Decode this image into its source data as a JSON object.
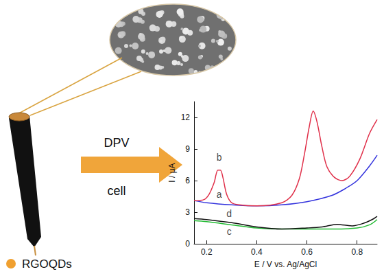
{
  "chart_data": {
    "type": "line",
    "xlabel": "E / V vs. Ag/AgCl",
    "ylabel": "I / μA",
    "xlim": [
      0.15,
      0.88
    ],
    "ylim": [
      0,
      13.5
    ],
    "xticks": [
      0.2,
      0.4,
      0.6,
      0.8
    ],
    "yticks": [
      0,
      3,
      6,
      9,
      12
    ],
    "series": [
      {
        "name": "a",
        "color": "#3333dd",
        "x": [
          0.15,
          0.2,
          0.3,
          0.4,
          0.5,
          0.6,
          0.7,
          0.75,
          0.8,
          0.85,
          0.88
        ],
        "values": [
          4.1,
          3.9,
          3.7,
          3.6,
          3.7,
          4.0,
          4.6,
          5.2,
          6.0,
          7.4,
          8.4
        ]
      },
      {
        "name": "b",
        "color": "#e0304a",
        "x": [
          0.15,
          0.19,
          0.21,
          0.23,
          0.245,
          0.255,
          0.265,
          0.28,
          0.3,
          0.33,
          0.4,
          0.5,
          0.54,
          0.57,
          0.59,
          0.61,
          0.625,
          0.64,
          0.66,
          0.68,
          0.71,
          0.74,
          0.77,
          0.81,
          0.85,
          0.88
        ],
        "values": [
          4.1,
          4.2,
          4.7,
          5.8,
          7.0,
          7.0,
          6.3,
          4.7,
          3.9,
          3.7,
          3.6,
          3.9,
          4.6,
          6.2,
          8.5,
          11.2,
          12.6,
          11.6,
          9.2,
          7.3,
          6.3,
          6.0,
          6.4,
          8.0,
          10.5,
          11.8
        ]
      },
      {
        "name": "c",
        "color": "#22bb33",
        "x": [
          0.15,
          0.2,
          0.3,
          0.4,
          0.5,
          0.6,
          0.7,
          0.8,
          0.85,
          0.88
        ],
        "values": [
          2.2,
          2.1,
          1.8,
          1.5,
          1.4,
          1.4,
          1.4,
          1.5,
          1.8,
          2.3
        ]
      },
      {
        "name": "d",
        "color": "#111111",
        "x": [
          0.15,
          0.2,
          0.3,
          0.4,
          0.5,
          0.6,
          0.66,
          0.72,
          0.78,
          0.82,
          0.86,
          0.88
        ],
        "values": [
          2.4,
          2.3,
          2.0,
          1.6,
          1.4,
          1.5,
          1.6,
          1.85,
          1.7,
          1.9,
          2.3,
          2.6
        ]
      }
    ],
    "annotations": [
      {
        "text": "a",
        "x": 0.25,
        "y": 4.7
      },
      {
        "text": "b",
        "x": 0.25,
        "y": 8.2
      },
      {
        "text": "d",
        "x": 0.29,
        "y": 2.9
      },
      {
        "text": "c",
        "x": 0.29,
        "y": 1.2
      }
    ]
  },
  "diagram": {
    "arrow_top": "DPV",
    "arrow_bottom": "cell",
    "legend_label": "RGOQDs"
  }
}
